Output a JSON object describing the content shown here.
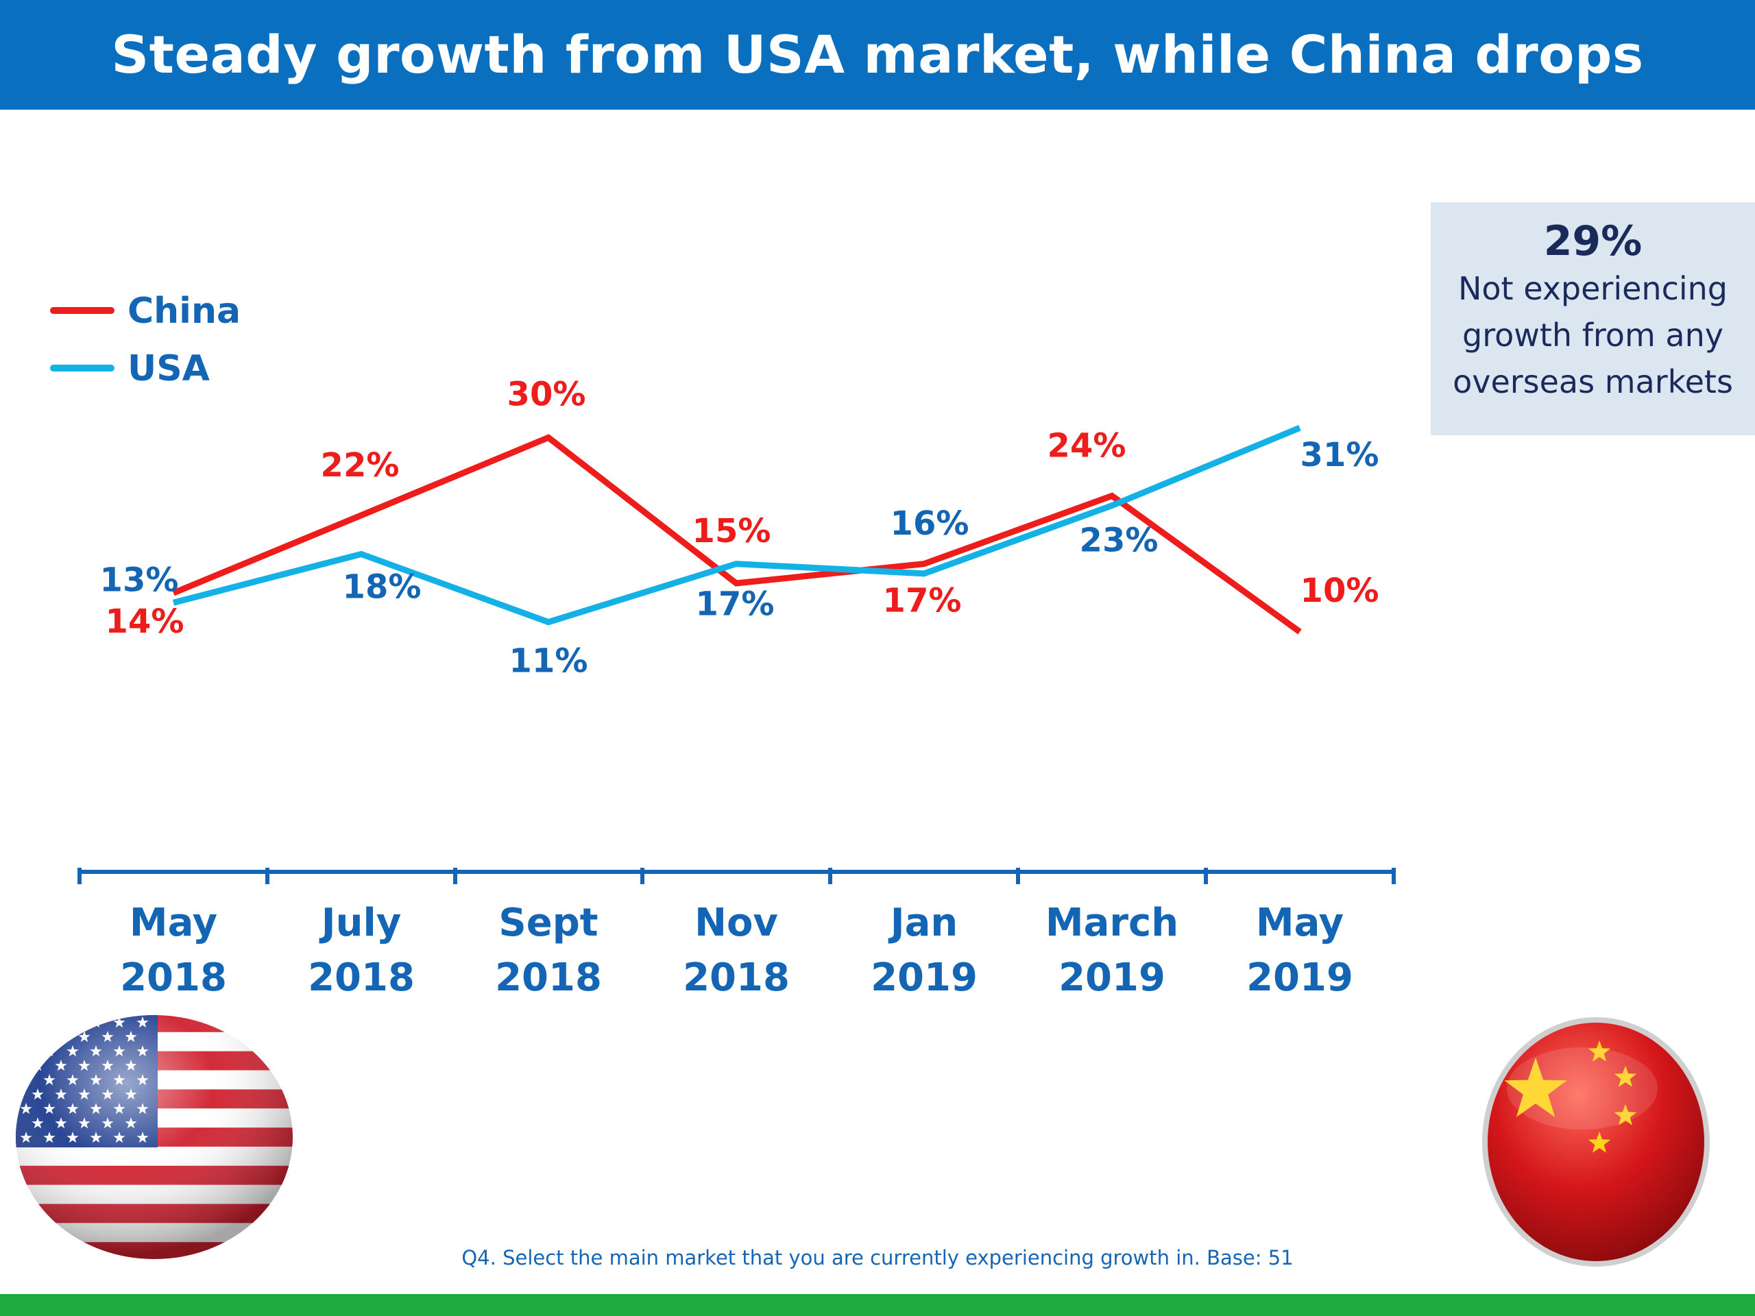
{
  "header": {
    "title": "Steady growth from USA market, while China drops"
  },
  "callout": {
    "value": "29%",
    "text": "Not experiencing growth from any overseas markets"
  },
  "footnote": "Q4. Select the main market that you are currently experiencing growth in. Base: 51",
  "flags": {
    "left": "usa-flag-icon",
    "right": "china-flag-icon"
  },
  "colors": {
    "china": "#ef1c1c",
    "usa": "#14b1e6",
    "label_usa": "#1466b4",
    "header": "#0b6fc0",
    "footer": "#1faa3f"
  },
  "chart_data": {
    "type": "line",
    "categories": [
      [
        "May",
        "2018"
      ],
      [
        "July",
        "2018"
      ],
      [
        "Sept",
        "2018"
      ],
      [
        "Nov",
        "2018"
      ],
      [
        "Jan",
        "2019"
      ],
      [
        "March",
        "2019"
      ],
      [
        "May",
        "2019"
      ]
    ],
    "series": [
      {
        "name": "China",
        "values": [
          14,
          22,
          30,
          15,
          17,
          24,
          10
        ],
        "labels": [
          "14%",
          "22%",
          "30%",
          "15%",
          "17%",
          "24%",
          "10%"
        ]
      },
      {
        "name": "USA",
        "values": [
          13,
          18,
          11,
          17,
          16,
          23,
          31
        ],
        "labels": [
          "13%",
          "18%",
          "11%",
          "17%",
          "16%",
          "23%",
          "31%"
        ]
      }
    ],
    "legend": {
      "position": "top-left"
    },
    "grid": false
  }
}
